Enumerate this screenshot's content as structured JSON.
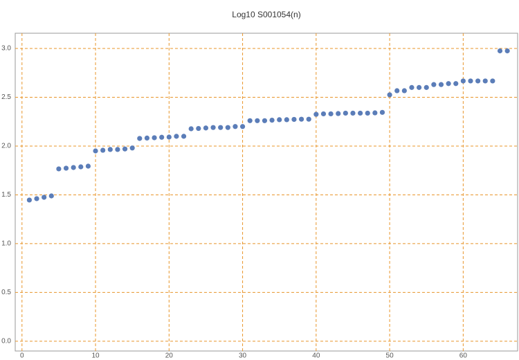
{
  "chart_data": {
    "type": "scatter",
    "title": "Log10 S001054(n)",
    "x": [
      1,
      2,
      3,
      4,
      5,
      6,
      7,
      8,
      9,
      10,
      11,
      12,
      13,
      14,
      15,
      16,
      17,
      18,
      19,
      20,
      21,
      22,
      23,
      24,
      25,
      26,
      27,
      28,
      29,
      30,
      31,
      32,
      33,
      34,
      35,
      36,
      37,
      38,
      39,
      40,
      41,
      42,
      43,
      44,
      45,
      46,
      47,
      48,
      49,
      50,
      51,
      52,
      53,
      54,
      55,
      56,
      57,
      58,
      59,
      60,
      61,
      62,
      63,
      64,
      65,
      66
    ],
    "values": [
      1.447,
      1.461,
      1.475,
      1.489,
      1.766,
      1.773,
      1.78,
      1.787,
      1.794,
      1.95,
      1.957,
      1.965,
      1.965,
      1.97,
      1.98,
      2.078,
      2.082,
      2.085,
      2.09,
      2.092,
      2.1,
      2.1,
      2.177,
      2.18,
      2.185,
      2.19,
      2.19,
      2.19,
      2.2,
      2.2,
      2.26,
      2.26,
      2.26,
      2.265,
      2.27,
      2.27,
      2.273,
      2.275,
      2.275,
      2.325,
      2.33,
      2.33,
      2.333,
      2.337,
      2.337,
      2.337,
      2.337,
      2.34,
      2.345,
      2.525,
      2.567,
      2.567,
      2.6,
      2.6,
      2.6,
      2.63,
      2.63,
      2.64,
      2.64,
      2.667,
      2.667,
      2.667,
      2.667,
      2.667,
      2.975,
      2.975
    ],
    "color": "#5b7db8",
    "grid_color": "#e8952a",
    "grid": true,
    "xlim": [
      -0.92,
      67.4
    ],
    "xticks": [
      0,
      10,
      20,
      30,
      40,
      50,
      60
    ],
    "ylim": [
      -0.1,
      3.156
    ],
    "yticks": [
      {
        "value": 0,
        "label": "0.0"
      },
      0.5,
      {
        "value": 1,
        "label": "1.0"
      },
      1.5,
      {
        "value": 2,
        "label": "2.0"
      },
      2.5,
      {
        "value": 3,
        "label": "3.0"
      }
    ]
  }
}
